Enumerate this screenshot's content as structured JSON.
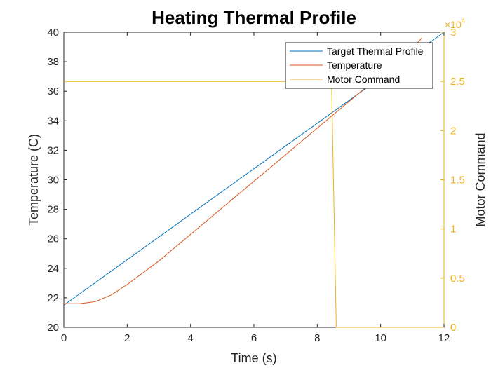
{
  "chart_data": {
    "type": "line",
    "title": "Heating Thermal Profile",
    "xlabel": "Time (s)",
    "ylabel": "Temperature (C)",
    "ylabel_right": "Motor Command",
    "right_axis_exponent_base": "×10",
    "right_axis_exponent_power": "4",
    "xlim": [
      0,
      12
    ],
    "ylim": [
      20,
      40
    ],
    "ylim_right": [
      0,
      3
    ],
    "x_ticks": [
      "0",
      "2",
      "4",
      "6",
      "8",
      "10",
      "12"
    ],
    "y_ticks": [
      "20",
      "22",
      "24",
      "26",
      "28",
      "30",
      "32",
      "34",
      "36",
      "38",
      "40"
    ],
    "y_right_ticks": [
      "0",
      "0.5",
      "1",
      "1.5",
      "2",
      "2.5",
      "3"
    ],
    "grid": false,
    "legend_position": "top-right",
    "series": [
      {
        "name": "Target Thermal Profile",
        "color": "#0072BD",
        "axis": "left",
        "x": [
          0,
          12
        ],
        "y": [
          21.5,
          40.8
        ]
      },
      {
        "name": "Temperature",
        "color": "#D95319",
        "axis": "left",
        "x": [
          0,
          0.5,
          1.0,
          1.5,
          2.0,
          2.5,
          3.0,
          3.5,
          4.0,
          4.5,
          5.0,
          5.5,
          6.0,
          6.5,
          7.0,
          7.5,
          8.0,
          8.5,
          9.0,
          9.5,
          10.0,
          10.5,
          11.0,
          11.3
        ],
        "y": [
          21.6,
          21.6,
          21.75,
          22.2,
          22.9,
          23.7,
          24.5,
          25.4,
          26.3,
          27.2,
          28.1,
          29.0,
          29.9,
          30.8,
          31.7,
          32.6,
          33.5,
          34.4,
          35.3,
          36.2,
          37.1,
          38.0,
          38.9,
          39.6
        ]
      },
      {
        "name": "Motor Command",
        "color": "#EDB120",
        "axis": "right",
        "x": [
          0,
          8.45,
          8.6,
          12
        ],
        "y": [
          2.5,
          2.5,
          0,
          0
        ]
      }
    ]
  }
}
